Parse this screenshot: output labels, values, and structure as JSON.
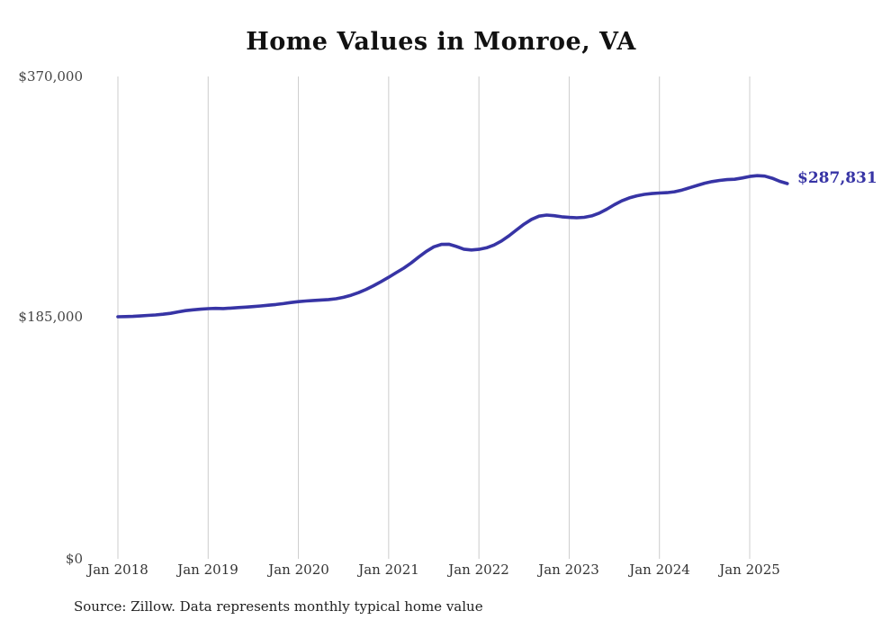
{
  "title": "Home Values in Monroe, VA",
  "source_note": "Source: Zillow. Data represents monthly typical home value",
  "end_label": "$287,831",
  "colors": {
    "line": "#3734a5",
    "grid": "#cccccc",
    "axis_text": "#444444",
    "title_text": "#111111"
  },
  "y_axis": {
    "labels": [
      "$370,000",
      "$185,000",
      "$0"
    ]
  },
  "x_axis": {
    "labels": [
      "Jan 2018",
      "Jan 2019",
      "Jan 2020",
      "Jan 2021",
      "Jan 2022",
      "Jan 2023",
      "Jan 2024",
      "Jan 2025"
    ]
  },
  "chart_data": {
    "type": "line",
    "title": "Home Values in Monroe, VA",
    "series_name": "Typical home value (monthly)",
    "x_start_month": "Jan 2018",
    "x_end_month": "Jun 2025",
    "ylim": [
      0,
      370000
    ],
    "y_tick_values": [
      0,
      185000,
      370000
    ],
    "x_tick_labels": [
      "Jan 2018",
      "Jan 2019",
      "Jan 2020",
      "Jan 2021",
      "Jan 2022",
      "Jan 2023",
      "Jan 2024",
      "Jan 2025"
    ],
    "grid": "vertical-only",
    "legend": "none",
    "final_value": 287831,
    "final_value_label": "$287,831",
    "values": [
      185700,
      185800,
      186000,
      186300,
      186700,
      187100,
      187600,
      188300,
      189400,
      190400,
      191000,
      191500,
      191900,
      192100,
      192000,
      192300,
      192700,
      193100,
      193500,
      194000,
      194500,
      195100,
      195800,
      196600,
      197300,
      197800,
      198200,
      198500,
      198900,
      199500,
      200600,
      202200,
      204200,
      206700,
      209500,
      212700,
      216000,
      219500,
      223000,
      227000,
      231500,
      235800,
      239300,
      241200,
      241300,
      239600,
      237500,
      236900,
      237400,
      238600,
      240700,
      243800,
      247800,
      252300,
      256700,
      260400,
      262900,
      263700,
      263200,
      262400,
      261900,
      261600,
      262000,
      263100,
      265200,
      268200,
      271600,
      274600,
      276900,
      278500,
      279600,
      280200,
      280600,
      280900,
      281600,
      282900,
      284600,
      286400,
      288100,
      289400,
      290300,
      290900,
      291200,
      292100,
      293300,
      293900,
      293600,
      291900,
      289600,
      287831
    ],
    "source": "Source: Zillow. Data represents monthly typical home value"
  }
}
